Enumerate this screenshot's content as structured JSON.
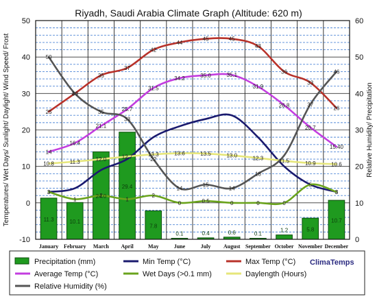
{
  "chart_data": {
    "type": "combo",
    "title": "Riyadh, Saudi Arabia Climate Graph (Altitude: 620 m)",
    "ylabel_left": "Temperatures/ Wet Days/ Sunlight/ Daylight/ Wind Speed/ Frost",
    "ylabel_right": "Relative Humidity/ Precipitation",
    "ylim_left": [
      -10,
      50
    ],
    "ylim_right": [
      0,
      60
    ],
    "yticks_left": [
      "-10",
      "0",
      "10",
      "20",
      "30",
      "40",
      "50"
    ],
    "yticks_right": [
      "0",
      "10",
      "20",
      "30",
      "40",
      "50",
      "60"
    ],
    "categories": [
      "January",
      "February",
      "March",
      "April",
      "May",
      "June",
      "July",
      "August",
      "September",
      "October",
      "November",
      "December"
    ],
    "brand": "ClimaTemps",
    "series": [
      {
        "name": "Precipitation (mm)",
        "kind": "bar",
        "axis": "right",
        "color": "#1f9a1f",
        "values": [
          11.3,
          10.1,
          24.0,
          29.4,
          7.8,
          0.1,
          0.4,
          0.6,
          0.1,
          1.2,
          5.8,
          10.7
        ],
        "labels": [
          "11.3",
          "10.1",
          "24.0",
          "29.4",
          "7.8",
          "0.1",
          "0.4",
          "0.6",
          "0.1",
          "1.2",
          "5.8",
          "10.7"
        ]
      },
      {
        "name": "Min Temp (°C)",
        "kind": "line",
        "axis": "left",
        "color": "#1a1a6e",
        "values": [
          3,
          4,
          9,
          12,
          18,
          21,
          23,
          24,
          18,
          10,
          5,
          3
        ],
        "labels": [
          "3",
          "",
          "",
          "",
          "",
          "",
          "",
          "",
          "",
          "",
          "",
          "3"
        ]
      },
      {
        "name": "Max Temp (°C)",
        "kind": "line",
        "axis": "left",
        "color": "#b8322a",
        "values": [
          25,
          30,
          35,
          37,
          42,
          44,
          45,
          45,
          43,
          36,
          33,
          26
        ],
        "labels": [
          "25",
          "30",
          "35",
          "37",
          "42",
          "44",
          "45",
          "45",
          "43",
          "36",
          "33",
          "26"
        ]
      },
      {
        "name": "Average Temp (°C)",
        "kind": "line",
        "axis": "left",
        "color": "#c33ddf",
        "values": [
          14,
          16.4,
          21.1,
          25.7,
          31.5,
          34.2,
          35.0,
          35.1,
          31.9,
          26.8,
          20.7,
          15.4
        ],
        "labels": [
          "14",
          "16.4",
          "21.1",
          "25.7",
          "31.5",
          "34.2",
          "35.0",
          "35.1",
          "31.9",
          "26.8",
          "20.7",
          "15.40"
        ]
      },
      {
        "name": "Wet Days (>0.1 mm)",
        "kind": "line",
        "axis": "left",
        "color": "#6aa31c",
        "values": [
          3,
          1,
          2,
          1,
          2,
          0,
          0.5,
          0,
          0,
          0,
          5,
          3
        ],
        "labels": [
          "3",
          "1",
          "2",
          "1",
          "2",
          "0",
          "0.5",
          "0",
          "0",
          "0",
          "5",
          "3"
        ]
      },
      {
        "name": "Daylength (Hours)",
        "kind": "line",
        "axis": "left",
        "color": "#e6e67a",
        "values": [
          10.8,
          11.3,
          12.0,
          12.7,
          13.3,
          13.6,
          13.5,
          13.0,
          12.3,
          11.5,
          10.9,
          10.6
        ],
        "labels": [
          "10.8",
          "11.3",
          "12.0",
          "12.7",
          "13.3",
          "13.6",
          "13.5",
          "13.0",
          "12.3",
          "11.5",
          "10.9",
          "10.6"
        ]
      },
      {
        "name": "Relative Humidity (%)",
        "kind": "line",
        "axis": "right",
        "color": "#555555",
        "values": [
          50,
          40,
          35,
          33,
          22,
          14,
          15,
          14,
          18,
          23,
          37,
          46
        ],
        "labels": [
          "50",
          "40",
          "35",
          "33",
          "22",
          "14",
          "15",
          "14",
          "18",
          "",
          "37",
          "46"
        ]
      }
    ]
  }
}
